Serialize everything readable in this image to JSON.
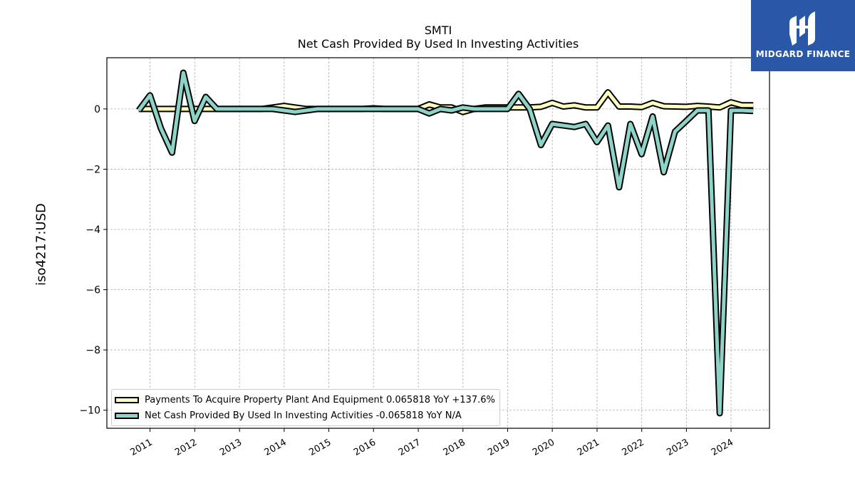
{
  "header": {
    "title_line1": "SMTI",
    "title_line2": "Net Cash Provided By Used In Investing Activities"
  },
  "logo": {
    "text": "MIDGARD FINANCE",
    "icon": "midgard-logo-icon",
    "background": "#2a57a6"
  },
  "colors": {
    "payments": "#ffffbf",
    "netcash": "#8dd3c7",
    "outline": "#000000",
    "grid": "#b0b0b0"
  },
  "chart_data": {
    "type": "line",
    "title": "SMTI\nNet Cash Provided By Used In Investing Activities",
    "xlabel": "",
    "ylabel": "iso4217:USD",
    "ylim": [
      -10.6,
      1.7
    ],
    "xlim": [
      "2010-01-13",
      "2024-11-10"
    ],
    "grid": true,
    "legend_position": "lower-left",
    "x_ticks": [
      "2011",
      "2012",
      "2013",
      "2014",
      "2015",
      "2016",
      "2017",
      "2018",
      "2019",
      "2020",
      "2021",
      "2022",
      "2023",
      "2024"
    ],
    "y_ticks": [
      0,
      -2,
      -4,
      -6,
      -8,
      -10
    ],
    "y_tick_labels": [
      "0",
      "−2",
      "−4",
      "−6",
      "−8",
      "−10"
    ],
    "series": [
      {
        "name": "Payments To Acquire Property Plant And Equipment  0.065818 YoY +137.6%",
        "color": "#ffffbf",
        "points": [
          [
            "2010-09-30",
            0.0
          ],
          [
            "2010-12-31",
            0.0
          ],
          [
            "2011-03-31",
            0.0
          ],
          [
            "2011-06-30",
            0.0
          ],
          [
            "2011-09-30",
            0.0
          ],
          [
            "2011-12-31",
            0.0
          ],
          [
            "2012-03-31",
            0.0
          ],
          [
            "2012-06-30",
            0.0
          ],
          [
            "2012-09-30",
            0.0
          ],
          [
            "2012-12-31",
            0.0
          ],
          [
            "2013-03-31",
            0.0
          ],
          [
            "2013-06-30",
            0.0
          ],
          [
            "2013-09-30",
            0.05
          ],
          [
            "2013-12-31",
            0.1
          ],
          [
            "2014-03-31",
            0.05
          ],
          [
            "2014-06-30",
            0.0
          ],
          [
            "2014-09-30",
            0.0
          ],
          [
            "2014-12-31",
            0.0
          ],
          [
            "2015-03-31",
            0.0
          ],
          [
            "2015-06-30",
            0.0
          ],
          [
            "2015-09-30",
            0.0
          ],
          [
            "2015-12-31",
            0.02
          ],
          [
            "2016-03-31",
            0.0
          ],
          [
            "2016-06-30",
            0.0
          ],
          [
            "2016-09-30",
            0.0
          ],
          [
            "2016-12-31",
            0.0
          ],
          [
            "2017-03-31",
            0.15
          ],
          [
            "2017-06-30",
            0.05
          ],
          [
            "2017-09-30",
            0.05
          ],
          [
            "2017-12-31",
            -0.1
          ],
          [
            "2018-03-31",
            0.0
          ],
          [
            "2018-06-30",
            0.05
          ],
          [
            "2018-09-30",
            0.05
          ],
          [
            "2018-12-31",
            0.05
          ],
          [
            "2019-03-31",
            0.05
          ],
          [
            "2019-06-30",
            0.05
          ],
          [
            "2019-09-30",
            0.07
          ],
          [
            "2019-12-31",
            0.2
          ],
          [
            "2020-03-31",
            0.08
          ],
          [
            "2020-06-30",
            0.12
          ],
          [
            "2020-09-30",
            0.05
          ],
          [
            "2020-12-31",
            0.05
          ],
          [
            "2021-03-31",
            0.55
          ],
          [
            "2021-06-30",
            0.08
          ],
          [
            "2021-09-30",
            0.08
          ],
          [
            "2021-12-31",
            0.06
          ],
          [
            "2022-03-31",
            0.2
          ],
          [
            "2022-06-30",
            0.09
          ],
          [
            "2022-09-30",
            0.08
          ],
          [
            "2022-12-31",
            0.07
          ],
          [
            "2023-03-31",
            0.1
          ],
          [
            "2023-06-30",
            0.08
          ],
          [
            "2023-09-30",
            0.05
          ],
          [
            "2023-12-31",
            0.22
          ],
          [
            "2024-03-31",
            0.12
          ],
          [
            "2024-06-30",
            0.12
          ]
        ]
      },
      {
        "name": "Net Cash Provided By Used In Investing Activities  -0.065818 YoY N/A",
        "color": "#8dd3c7",
        "points": [
          [
            "2010-09-30",
            -0.05
          ],
          [
            "2010-12-31",
            0.45
          ],
          [
            "2011-03-31",
            -0.65
          ],
          [
            "2011-06-30",
            -1.45
          ],
          [
            "2011-09-30",
            1.2
          ],
          [
            "2011-12-31",
            -0.4
          ],
          [
            "2012-03-31",
            0.4
          ],
          [
            "2012-06-30",
            0.0
          ],
          [
            "2012-09-30",
            0.0
          ],
          [
            "2012-12-31",
            0.0
          ],
          [
            "2013-03-31",
            0.0
          ],
          [
            "2013-06-30",
            0.0
          ],
          [
            "2013-09-30",
            0.0
          ],
          [
            "2013-12-31",
            -0.05
          ],
          [
            "2014-03-31",
            -0.1
          ],
          [
            "2014-06-30",
            -0.05
          ],
          [
            "2014-09-30",
            0.0
          ],
          [
            "2014-12-31",
            0.0
          ],
          [
            "2015-03-31",
            0.0
          ],
          [
            "2015-06-30",
            0.0
          ],
          [
            "2015-09-30",
            0.0
          ],
          [
            "2015-12-31",
            0.0
          ],
          [
            "2016-03-31",
            0.0
          ],
          [
            "2016-06-30",
            0.0
          ],
          [
            "2016-09-30",
            0.0
          ],
          [
            "2016-12-31",
            0.0
          ],
          [
            "2017-03-31",
            -0.15
          ],
          [
            "2017-06-30",
            0.0
          ],
          [
            "2017-09-30",
            -0.05
          ],
          [
            "2017-12-31",
            0.05
          ],
          [
            "2018-03-31",
            0.0
          ],
          [
            "2018-06-30",
            0.0
          ],
          [
            "2018-09-30",
            0.0
          ],
          [
            "2018-12-31",
            0.0
          ],
          [
            "2019-03-31",
            0.5
          ],
          [
            "2019-06-30",
            0.0
          ],
          [
            "2019-09-30",
            -1.2
          ],
          [
            "2019-12-31",
            -0.5
          ],
          [
            "2020-03-31",
            -0.55
          ],
          [
            "2020-06-30",
            -0.6
          ],
          [
            "2020-09-30",
            -0.5
          ],
          [
            "2020-12-31",
            -1.1
          ],
          [
            "2021-03-31",
            -0.55
          ],
          [
            "2021-06-30",
            -2.6
          ],
          [
            "2021-09-30",
            -0.5
          ],
          [
            "2021-12-31",
            -1.5
          ],
          [
            "2022-03-31",
            -0.25
          ],
          [
            "2022-06-30",
            -2.1
          ],
          [
            "2022-09-30",
            -0.75
          ],
          [
            "2022-12-31",
            -0.4
          ],
          [
            "2023-03-31",
            -0.05
          ],
          [
            "2023-06-30",
            -0.05
          ],
          [
            "2023-09-30",
            -10.1
          ],
          [
            "2023-12-31",
            -0.05
          ],
          [
            "2024-03-31",
            -0.05
          ],
          [
            "2024-06-30",
            -0.07
          ]
        ]
      }
    ]
  }
}
